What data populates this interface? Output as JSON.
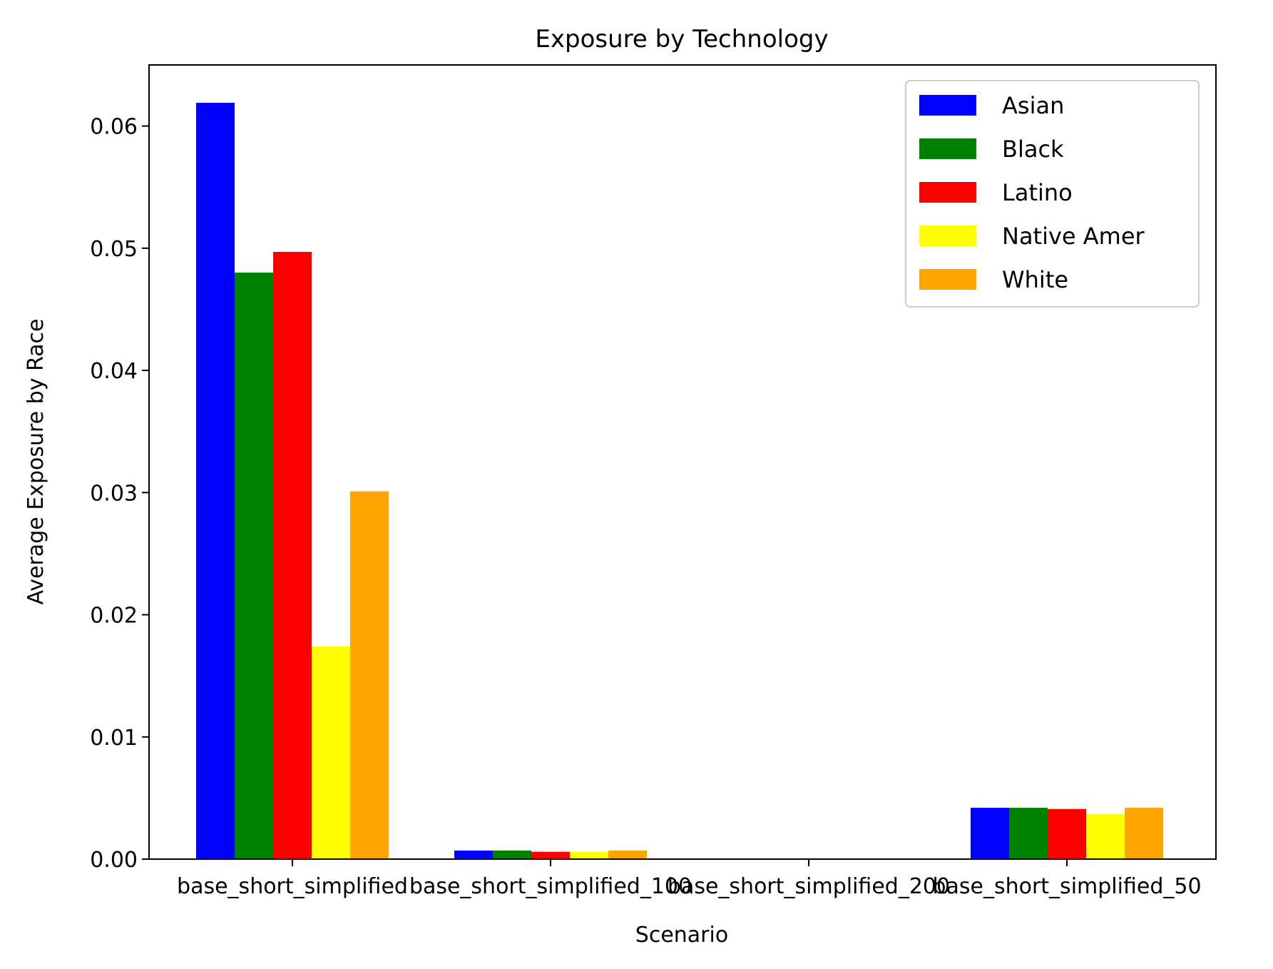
{
  "chart_data": {
    "type": "bar",
    "title": "Exposure by Technology",
    "xlabel": "Scenario",
    "ylabel": "Average Exposure by Race",
    "categories": [
      "base_short_simplified",
      "base_short_simplified_100",
      "base_short_simplified_200",
      "base_short_simplified_50"
    ],
    "ylim": [
      0,
      0.065
    ],
    "yticks": [
      "0.00",
      "0.01",
      "0.02",
      "0.03",
      "0.04",
      "0.05",
      "0.06"
    ],
    "series": [
      {
        "name": "Asian",
        "color": "#0000ff",
        "values": [
          0.0619,
          0.0007,
          0.0,
          0.0042
        ]
      },
      {
        "name": "Black",
        "color": "#008000",
        "values": [
          0.048,
          0.0007,
          0.0,
          0.0042
        ]
      },
      {
        "name": "Latino",
        "color": "#ff0000",
        "values": [
          0.0497,
          0.0006,
          0.0,
          0.0041
        ]
      },
      {
        "name": "Native Amer",
        "color": "#ffff00",
        "values": [
          0.0174,
          0.0006,
          0.0,
          0.0037
        ]
      },
      {
        "name": "White",
        "color": "#ffa500",
        "values": [
          0.0301,
          0.0007,
          0.0,
          0.0042
        ]
      }
    ],
    "grid": false,
    "legend_position": "top-right"
  }
}
